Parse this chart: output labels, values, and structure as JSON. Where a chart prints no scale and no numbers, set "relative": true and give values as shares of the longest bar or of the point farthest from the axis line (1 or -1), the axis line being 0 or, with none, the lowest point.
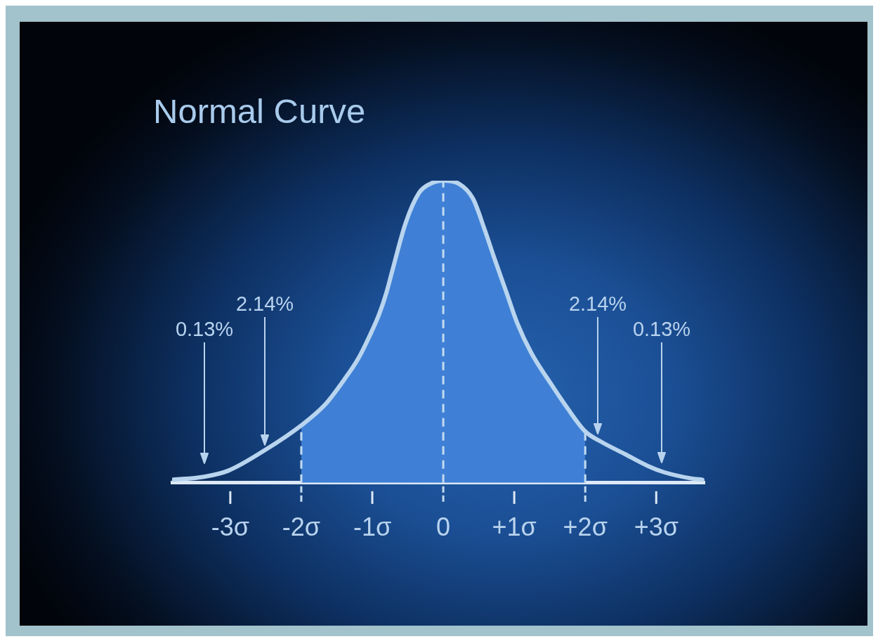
{
  "chart_data": {
    "type": "line",
    "title": "Normal Curve",
    "relative": true,
    "series": [
      {
        "type": "line",
        "color": "#b8d4ee",
        "x": [
          -3.82,
          -3.37,
          -3.03,
          -2.5,
          -2,
          -1.66,
          -1.4,
          -1.2,
          -1.03,
          -0.9,
          -0.8,
          -0.72,
          -0.53,
          -0.34,
          -0.18,
          0,
          0.22,
          0.42,
          0.58,
          0.71,
          0.89,
          1.04,
          1.24,
          1.51,
          1.74,
          2,
          2.23,
          2.56,
          2.89,
          3.11,
          3.48,
          3.65
        ],
        "values": [
          0.01,
          0.02,
          0.04,
          0.11,
          0.19,
          0.26,
          0.34,
          0.41,
          0.49,
          0.56,
          0.63,
          0.7,
          0.86,
          0.96,
          0.99,
          1,
          0.99,
          0.94,
          0.84,
          0.75,
          0.63,
          0.53,
          0.43,
          0.33,
          0.25,
          0.17,
          0.135,
          0.095,
          0.055,
          0.035,
          0.015,
          0.01
        ]
      },
      {
        "type": "area",
        "color": "#3f80d6",
        "x": [
          -2,
          -1.66,
          -1.4,
          -1.2,
          -1.03,
          -0.9,
          -0.8,
          -0.72,
          -0.53,
          -0.34,
          -0.18,
          0,
          0.22,
          0.42,
          0.58,
          0.71,
          0.89,
          1.04,
          1.24,
          1.51,
          1.74,
          2
        ],
        "values": [
          0.19,
          0.26,
          0.34,
          0.41,
          0.49,
          0.56,
          0.63,
          0.7,
          0.86,
          0.96,
          0.99,
          1,
          0.99,
          0.94,
          0.84,
          0.75,
          0.63,
          0.53,
          0.43,
          0.33,
          0.25,
          0.17
        ]
      }
    ],
    "xlim": [
      -3.82,
      3.68
    ],
    "xticks": [
      {
        "value": -3,
        "label": "-3σ"
      },
      {
        "value": -2,
        "label": "-2σ"
      },
      {
        "value": -1,
        "label": "-1σ"
      },
      0,
      {
        "value": 1,
        "label": "+1σ"
      },
      {
        "value": 2,
        "label": "+2σ"
      },
      {
        "value": 3,
        "label": "+3σ"
      }
    ],
    "tick_labels": "x",
    "ref_lines": [
      {
        "axis": "x",
        "value": -2,
        "color": "#c3dbf1",
        "line_style": "dashed"
      },
      {
        "axis": "x",
        "value": 0,
        "color": "#c3dbf1",
        "line_style": "dashed"
      },
      {
        "axis": "x",
        "value": 2,
        "color": "#c3dbf1",
        "line_style": "dashed"
      }
    ],
    "annotations": [
      "0.13%",
      "2.14%",
      "2.14%",
      "0.13%"
    ]
  }
}
